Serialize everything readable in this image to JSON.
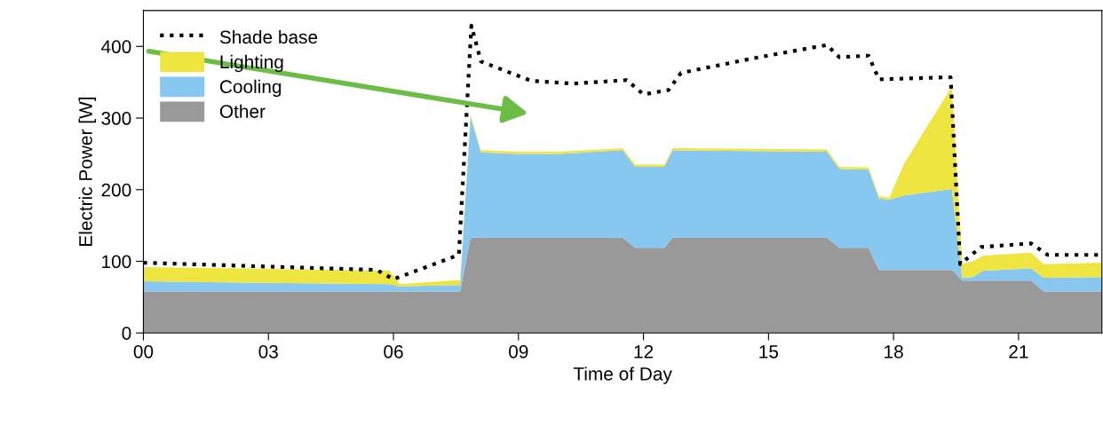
{
  "chart_data": {
    "type": "area",
    "stacked": true,
    "xlabel": "Time of Day",
    "ylabel": "Electric Power [W]",
    "x": [
      0,
      5.9,
      6.15,
      7.6,
      7.85,
      8.1,
      9,
      10,
      11.5,
      11.8,
      12.5,
      12.7,
      16.4,
      16.7,
      17.4,
      17.65,
      17.9,
      18.25,
      19.4,
      19.65,
      19.9,
      20.15,
      21.3,
      21.6,
      23
    ],
    "series": [
      {
        "name": "Other",
        "color": "#999999",
        "values": [
          58,
          58,
          58,
          58,
          133,
          133,
          133,
          133,
          133,
          119,
          119,
          133,
          133,
          119,
          119,
          88,
          88,
          88,
          88,
          73,
          73,
          73,
          73,
          58,
          58
        ]
      },
      {
        "name": "Cooling",
        "color": "#88c8f0",
        "values": [
          14,
          10,
          7,
          9,
          169,
          119,
          117,
          117,
          122,
          113,
          113,
          122,
          120,
          110,
          109,
          100,
          98,
          104,
          113,
          4,
          5,
          14,
          17,
          19,
          20
        ]
      },
      {
        "name": "Lighting",
        "color": "#efe541",
        "values": [
          20,
          19,
          3,
          7,
          3,
          3,
          3,
          3,
          3,
          3,
          3,
          3,
          3,
          3,
          3,
          3,
          3,
          44,
          143,
          19,
          22,
          21,
          22,
          19,
          20
        ]
      },
      {
        "name": "Shade base",
        "type": "line",
        "color": "#000000",
        "line_style": "dotted",
        "marker": "none",
        "x": [
          0,
          5.6,
          6.0,
          7.57,
          7.87,
          8.1,
          9.3,
          10.3,
          11.6,
          12.0,
          12.6,
          12.9,
          14.6,
          16.4,
          16.7,
          17.4,
          17.65,
          19.37,
          19.6,
          20.1,
          21.3,
          21.7,
          23
        ],
        "values": [
          98,
          88,
          75,
          109,
          429,
          379,
          352,
          348,
          353,
          333,
          339,
          363,
          383,
          402,
          385,
          387,
          354,
          357,
          96,
          120,
          125,
          109,
          109
        ]
      }
    ],
    "xlim": [
      0,
      23
    ],
    "xticks": [
      {
        "value": 0,
        "label": "00"
      },
      {
        "value": 3,
        "label": "03"
      },
      {
        "value": 6,
        "label": "06"
      },
      {
        "value": 9,
        "label": "09"
      },
      {
        "value": 12,
        "label": "12"
      },
      {
        "value": 15,
        "label": "15"
      },
      {
        "value": 18,
        "label": "18"
      },
      {
        "value": 21,
        "label": "21"
      }
    ],
    "ylim": [
      0,
      450
    ],
    "yticks": [
      0,
      100,
      200,
      300,
      400
    ],
    "grid": false,
    "legend": "top left"
  }
}
